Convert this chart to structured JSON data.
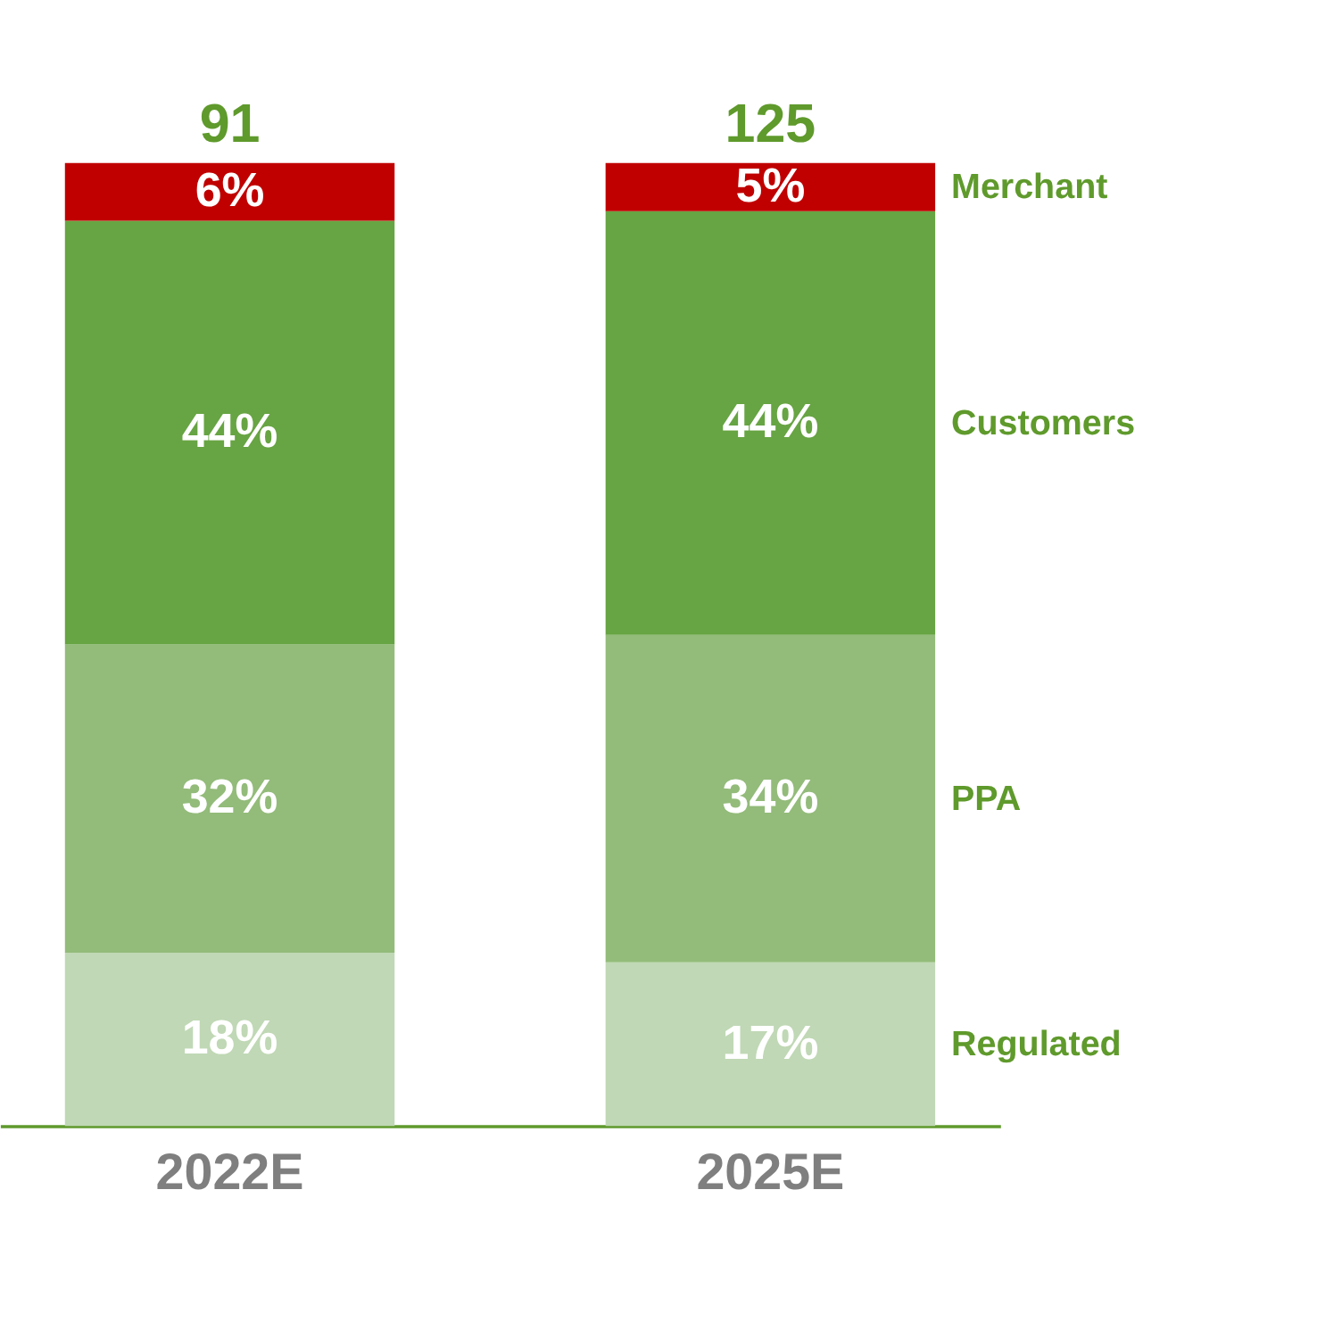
{
  "chart_data": {
    "type": "bar",
    "stacked": true,
    "categories": [
      "2022E",
      "2025E"
    ],
    "series": [
      {
        "name": "Regulated",
        "color": "#c0d8b5",
        "values": [
          18,
          17
        ],
        "value_labels": [
          "18%",
          "17%"
        ]
      },
      {
        "name": "PPA",
        "color": "#93bb7a",
        "values": [
          32,
          34
        ],
        "value_labels": [
          "32%",
          "34%"
        ]
      },
      {
        "name": "Customers",
        "color": "#67a443",
        "values": [
          44,
          44
        ],
        "value_labels": [
          "44%",
          "44%"
        ]
      },
      {
        "name": "Merchant",
        "color": "#c00000",
        "values": [
          6,
          5
        ],
        "value_labels": [
          "6%",
          "5%"
        ]
      }
    ],
    "annotations": [
      {
        "text": "91",
        "x": "2022E",
        "y": 100
      },
      {
        "text": "125",
        "x": "2025E",
        "y": 100
      }
    ],
    "tick_labels": "x",
    "legend": false,
    "grid": false
  }
}
